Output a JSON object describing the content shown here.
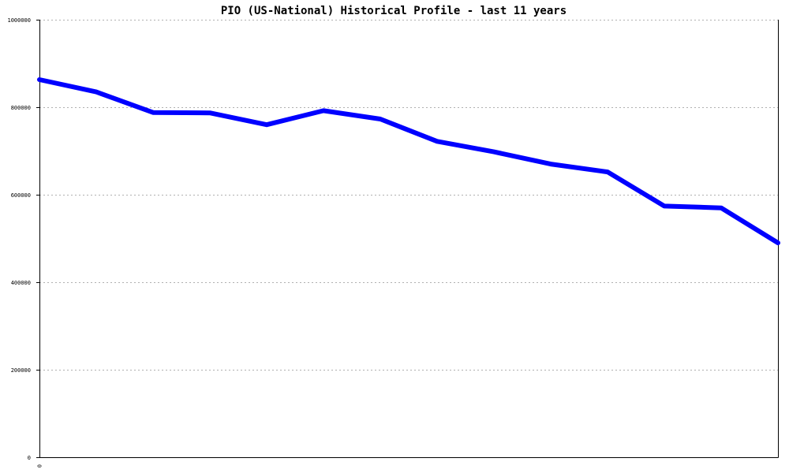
{
  "chart_data": {
    "type": "line",
    "title": "PIO (US-National) Historical Profile - last 11 years",
    "xlabel": "",
    "ylabel": "",
    "ylim": [
      0,
      1000000
    ],
    "y_ticks": [
      "0",
      "200000",
      "400000",
      "600000",
      "800000",
      "1000000"
    ],
    "y_tick_values": [
      0,
      200000,
      400000,
      600000,
      800000,
      1000000
    ],
    "x_ticks": [
      "0"
    ],
    "grid": true,
    "legend": "none",
    "series": [
      {
        "color": "#0000ff",
        "values": [
          863000,
          835000,
          788000,
          787000,
          760000,
          792000,
          773000,
          722000,
          698000,
          670000,
          652000,
          574000,
          570000,
          490000
        ]
      }
    ]
  }
}
